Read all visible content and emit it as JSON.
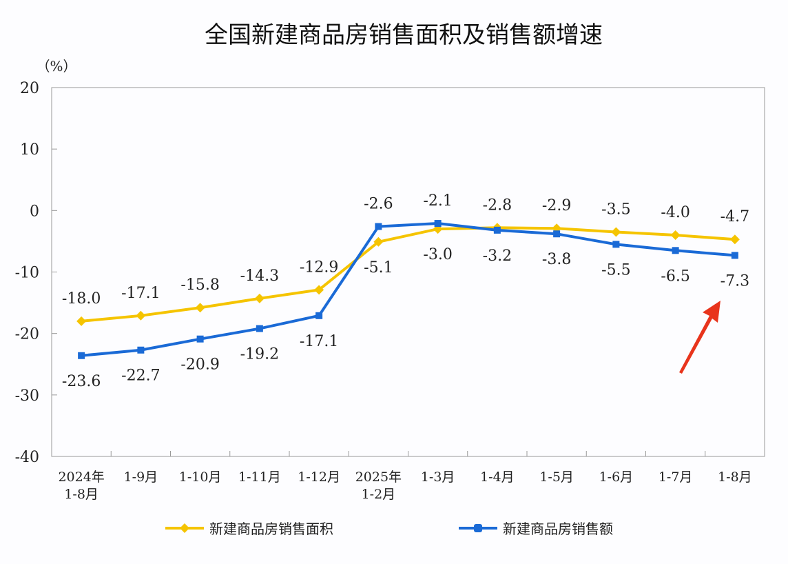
{
  "chart_data": {
    "type": "line",
    "title": "全国新建商品房销售面积及销售额增速",
    "ylabel": "（%）",
    "xlabel": "",
    "ylim": [
      -40,
      20
    ],
    "yticks": [
      20,
      10,
      0,
      -10,
      -20,
      -30,
      -40
    ],
    "categories": [
      [
        "2024年",
        "1-8月"
      ],
      [
        "1-9月"
      ],
      [
        "1-10月"
      ],
      [
        "1-11月"
      ],
      [
        "1-12月"
      ],
      [
        "2025年",
        "1-2月"
      ],
      [
        "1-3月"
      ],
      [
        "1-4月"
      ],
      [
        "1-5月"
      ],
      [
        "1-6月"
      ],
      [
        "1-7月"
      ],
      [
        "1-8月"
      ]
    ],
    "series": [
      {
        "name": "新建商品房销售面积",
        "color": "#f5c400",
        "marker": "diamond",
        "values": [
          -18.0,
          -17.1,
          -15.8,
          -14.3,
          -12.9,
          -5.1,
          -3.0,
          -2.8,
          -2.9,
          -3.5,
          -4.0,
          -4.7
        ]
      },
      {
        "name": "新建商品房销售额",
        "color": "#1a6ad6",
        "marker": "square",
        "values": [
          -23.6,
          -22.7,
          -20.9,
          -19.2,
          -17.1,
          -2.6,
          -2.1,
          -3.2,
          -3.8,
          -5.5,
          -6.5,
          -7.3
        ]
      }
    ],
    "grid": false,
    "legend": "bottom",
    "annotation_color": "#e8341c"
  }
}
